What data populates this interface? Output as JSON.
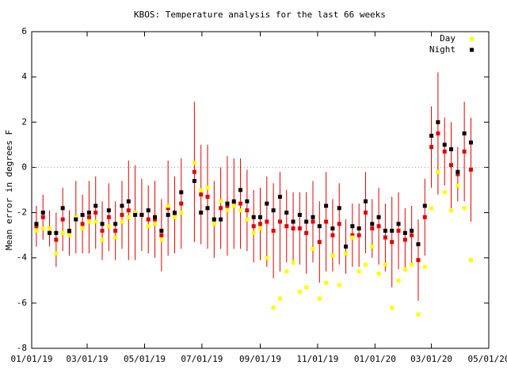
{
  "chart_data": {
    "type": "scatter",
    "title": "KBOS: Temperature analysis for the last 66 weeks",
    "ylabel": "Mean error in degrees F",
    "x": [
      "2019-01-06",
      "2019-01-13",
      "2019-01-20",
      "2019-01-27",
      "2019-02-03",
      "2019-02-10",
      "2019-02-17",
      "2019-02-24",
      "2019-03-03",
      "2019-03-10",
      "2019-03-17",
      "2019-03-24",
      "2019-03-31",
      "2019-04-07",
      "2019-04-14",
      "2019-04-21",
      "2019-04-28",
      "2019-05-05",
      "2019-05-12",
      "2019-05-19",
      "2019-05-26",
      "2019-06-02",
      "2019-06-09",
      "2019-06-23",
      "2019-06-30",
      "2019-07-07",
      "2019-07-14",
      "2019-07-21",
      "2019-07-28",
      "2019-08-04",
      "2019-08-11",
      "2019-08-18",
      "2019-08-25",
      "2019-09-01",
      "2019-09-08",
      "2019-09-15",
      "2019-09-22",
      "2019-09-29",
      "2019-10-06",
      "2019-10-13",
      "2019-10-20",
      "2019-10-27",
      "2019-11-03",
      "2019-11-10",
      "2019-11-17",
      "2019-11-24",
      "2019-12-01",
      "2019-12-08",
      "2019-12-15",
      "2019-12-22",
      "2019-12-29",
      "2020-01-05",
      "2020-01-12",
      "2020-01-19",
      "2020-01-26",
      "2020-02-02",
      "2020-02-09",
      "2020-02-16",
      "2020-02-23",
      "2020-03-01",
      "2020-03-08",
      "2020-03-15",
      "2020-03-22",
      "2020-03-29",
      "2020-04-05",
      "2020-04-12"
    ],
    "series": [
      {
        "color": "#e00000",
        "values": [
          -2.6,
          -2.2,
          -2.7,
          -3.2,
          -2.3,
          -2.9,
          -2.2,
          -2.5,
          -2.2,
          -2.0,
          -2.8,
          -2.2,
          -2.8,
          -2.1,
          -1.9,
          -2.0,
          -2.1,
          -2.3,
          -2.3,
          -3.0,
          -1.8,
          -2.1,
          -1.6,
          -0.2,
          -1.2,
          -1.3,
          -2.3,
          -1.8,
          -1.7,
          -1.6,
          -1.6,
          -1.9,
          -2.6,
          -2.5,
          -2.4,
          -2.8,
          -2.4,
          -2.6,
          -2.7,
          -2.7,
          -2.9,
          -2.4,
          -3.3,
          -2.4,
          -3.0,
          -2.5,
          -3.5,
          -3.0,
          -3.0,
          -2.0,
          -2.7,
          -2.6,
          -3.1,
          -3.3,
          -2.8,
          -3.2,
          -3.0,
          -4.1,
          -2.2,
          0.9,
          1.5,
          0.7,
          0.1,
          -0.3,
          0.7,
          -0.1
        ],
        "errors": [
          0.9,
          1.0,
          0.8,
          1.2,
          1.4,
          1.0,
          1.6,
          1.3,
          1.6,
          1.6,
          1.3,
          1.5,
          1.3,
          1.5,
          2.2,
          2.1,
          1.6,
          1.5,
          1.7,
          1.6,
          2.1,
          1.7,
          2.0,
          3.1,
          2.2,
          2.3,
          1.7,
          1.8,
          2.2,
          2.0,
          2.0,
          1.8,
          1.6,
          1.6,
          2.0,
          2.1,
          2.2,
          1.6,
          1.6,
          1.6,
          1.8,
          1.8,
          1.8,
          2.2,
          1.6,
          1.8,
          1.2,
          1.4,
          1.4,
          1.8,
          1.3,
          1.7,
          1.5,
          2.0,
          1.7,
          1.4,
          1.3,
          1.8,
          1.7,
          1.8,
          2.7,
          1.5,
          1.9,
          1.2,
          2.2,
          2.3
        ]
      },
      {
        "name": "Day",
        "color": "#ffff00",
        "values": [
          -2.8,
          -2.7,
          -2.7,
          -3.8,
          -2.9,
          -3.0,
          -2.2,
          -2.7,
          -2.4,
          -2.4,
          -3.2,
          -2.6,
          -3.1,
          -2.4,
          -2.2,
          -2.0,
          -2.1,
          -2.6,
          -2.5,
          -3.2,
          -1.7,
          -2.2,
          -2.0,
          0.2,
          -1.0,
          -0.9,
          -2.5,
          -1.5,
          -1.9,
          -1.7,
          -1.9,
          -2.3,
          -2.9,
          -2.7,
          -4.0,
          -6.2,
          -5.8,
          -4.6,
          -4.2,
          -5.5,
          -5.3,
          -3.6,
          -5.8,
          -5.1,
          -3.9,
          -5.2,
          -3.8,
          -3.1,
          -4.6,
          -4.3,
          -3.5,
          -4.7,
          -4.3,
          -6.2,
          -5.0,
          -4.5,
          -4.3,
          -6.5,
          -4.4,
          -1.8,
          -0.2,
          -1.1,
          -1.9,
          -0.8,
          -1.8,
          -4.1
        ]
      },
      {
        "name": "Night",
        "color": "#000000",
        "values": [
          -2.5,
          -2.0,
          -2.9,
          -2.9,
          -1.8,
          -2.8,
          -2.3,
          -2.1,
          -2.0,
          -1.7,
          -2.5,
          -1.9,
          -2.5,
          -1.7,
          -1.5,
          -2.1,
          -2.1,
          -1.9,
          -2.2,
          -2.8,
          -2.1,
          -2.0,
          -1.1,
          -0.6,
          -2.0,
          -1.8,
          -2.3,
          -2.3,
          -1.6,
          -1.5,
          -1.0,
          -1.5,
          -2.2,
          -2.2,
          -1.6,
          -1.9,
          -1.3,
          -2.0,
          -2.4,
          -2.1,
          -2.4,
          -2.2,
          -2.6,
          -1.7,
          -2.7,
          -1.8,
          -3.5,
          -2.6,
          -2.7,
          -1.5,
          -2.5,
          -2.2,
          -2.8,
          -2.8,
          -2.5,
          -2.9,
          -2.8,
          -3.4,
          -1.7,
          1.4,
          2.0,
          1.0,
          0.8,
          -0.2,
          1.5,
          1.1
        ]
      }
    ],
    "xlim": [
      "2019-01-01",
      "2020-05-01"
    ],
    "xticks": [
      {
        "value": "2019-01-01",
        "label": "01/01/19"
      },
      {
        "value": "2019-03-01",
        "label": "03/01/19"
      },
      {
        "value": "2019-05-01",
        "label": "05/01/19"
      },
      {
        "value": "2019-07-01",
        "label": "07/01/19"
      },
      {
        "value": "2019-09-01",
        "label": "09/01/19"
      },
      {
        "value": "2019-11-01",
        "label": "11/01/19"
      },
      {
        "value": "2020-01-01",
        "label": "01/01/20"
      },
      {
        "value": "2020-03-01",
        "label": "03/01/20"
      },
      {
        "value": "2020-05-01",
        "label": "05/01/20"
      }
    ],
    "ylim": [
      -8,
      6
    ],
    "yticks": [
      -8,
      -6,
      -4,
      -2,
      0,
      2,
      4,
      6
    ],
    "reference_line": 0,
    "legend": "top-right"
  }
}
